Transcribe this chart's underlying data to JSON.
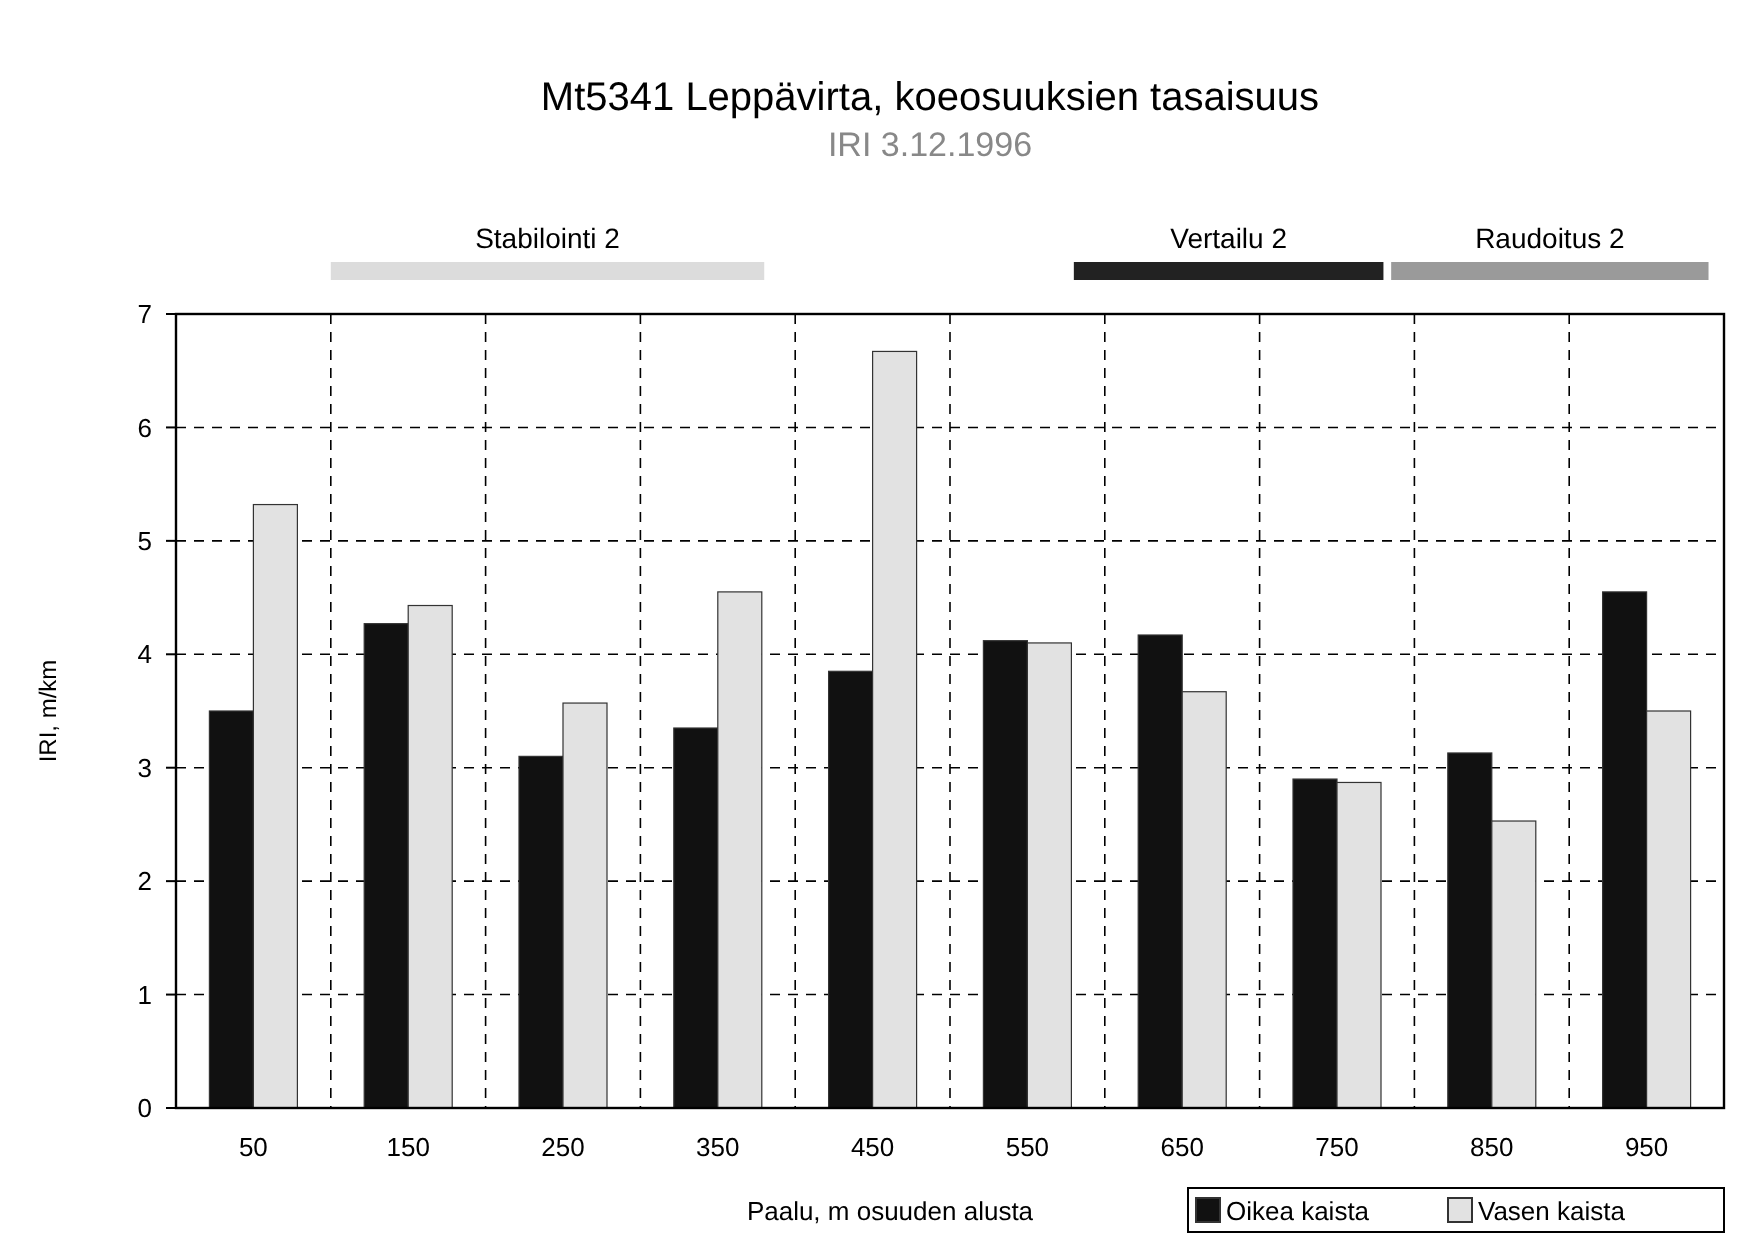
{
  "chart_data": {
    "type": "bar",
    "title": "Mt5341 Leppävirta, koeosuuksien tasaisuus",
    "subtitle": "IRI 3.12.1996",
    "xlabel": "Paalu, m osuuden alusta",
    "ylabel": "IRI, m/km",
    "categories": [
      "50",
      "150",
      "250",
      "350",
      "450",
      "550",
      "650",
      "750",
      "850",
      "950"
    ],
    "series": [
      {
        "name": "Oikea kaista",
        "color": "#111111",
        "values": [
          3.5,
          4.27,
          3.1,
          3.35,
          3.85,
          4.12,
          4.17,
          2.9,
          3.13,
          4.55
        ]
      },
      {
        "name": "Vasen kaista",
        "color": "#e2e2e2",
        "values": [
          5.32,
          4.43,
          3.57,
          4.55,
          6.67,
          4.1,
          3.67,
          2.87,
          2.53,
          3.5
        ]
      }
    ],
    "ylim": [
      0,
      7
    ],
    "yticks": [
      0,
      1,
      2,
      3,
      4,
      5,
      6,
      7
    ],
    "grid": true,
    "legend": "bottom right",
    "annotations": [
      "Stabilointi 2",
      "Vertailu 2",
      "Raudoitus 2"
    ]
  }
}
